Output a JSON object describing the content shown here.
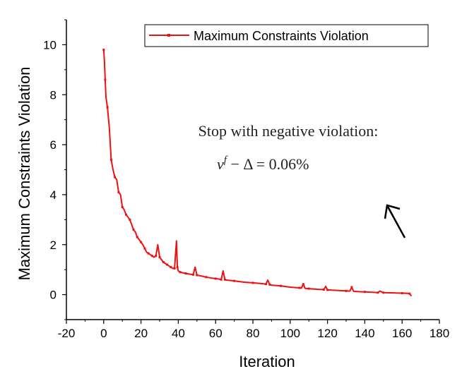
{
  "chart_data": {
    "type": "line",
    "title": "",
    "xlabel": "Iteration",
    "ylabel": "Maximum Constraints Violation",
    "xlim": [
      -20,
      180
    ],
    "ylim": [
      -1,
      11
    ],
    "xticks": [
      -20,
      0,
      20,
      40,
      60,
      80,
      100,
      120,
      140,
      160,
      180
    ],
    "yticks": [
      0,
      2,
      4,
      6,
      8,
      10
    ],
    "grid": false,
    "legend_position": "top-right",
    "series": [
      {
        "name": "Maximum Constraints Violation",
        "color": "#ee1111",
        "x": [
          0,
          0.4,
          0.8,
          1.2,
          2,
          3,
          4,
          5,
          6,
          7,
          8,
          9,
          10,
          11,
          12,
          13,
          14,
          15,
          16,
          17,
          18,
          19,
          20,
          21,
          22,
          23,
          24,
          25,
          26,
          27,
          28,
          29,
          30,
          31,
          32,
          33,
          34,
          35,
          36,
          37,
          38,
          39,
          39.5,
          40,
          41,
          42,
          44,
          46,
          48,
          49,
          50,
          52,
          55,
          58,
          60,
          62,
          63,
          64,
          65,
          66,
          70,
          75,
          80,
          85,
          87,
          88,
          89,
          90,
          95,
          100,
          105,
          106,
          107,
          108,
          110,
          115,
          118,
          119,
          120,
          125,
          130,
          132,
          133,
          134,
          140,
          145,
          147,
          148,
          150,
          155,
          160,
          163,
          164,
          165
        ],
        "y": [
          9.8,
          9.3,
          8.6,
          7.9,
          7.5,
          6.7,
          5.4,
          5.0,
          4.7,
          4.6,
          4.1,
          4.0,
          3.5,
          3.4,
          3.2,
          3.1,
          3.0,
          2.8,
          2.6,
          2.5,
          2.3,
          2.2,
          2.1,
          2.0,
          1.85,
          1.7,
          1.65,
          1.6,
          1.55,
          1.5,
          1.55,
          2.0,
          1.5,
          1.4,
          1.3,
          1.25,
          1.2,
          1.15,
          1.1,
          1.05,
          1.05,
          2.15,
          1.1,
          0.95,
          0.9,
          0.88,
          0.85,
          0.82,
          0.8,
          1.1,
          0.78,
          0.75,
          0.7,
          0.66,
          0.64,
          0.62,
          0.6,
          0.95,
          0.6,
          0.58,
          0.55,
          0.5,
          0.47,
          0.44,
          0.42,
          0.58,
          0.4,
          0.38,
          0.35,
          0.3,
          0.27,
          0.26,
          0.42,
          0.25,
          0.24,
          0.21,
          0.2,
          0.33,
          0.19,
          0.17,
          0.15,
          0.14,
          0.3,
          0.13,
          0.11,
          0.09,
          0.08,
          0.14,
          0.08,
          0.07,
          0.06,
          0.05,
          0.04,
          -0.06
        ]
      }
    ],
    "annotations": {
      "line1": "Stop with negative violation:",
      "math_nu": "ν",
      "math_sup": "f",
      "math_rest": " − Δ = 0.06%"
    }
  }
}
